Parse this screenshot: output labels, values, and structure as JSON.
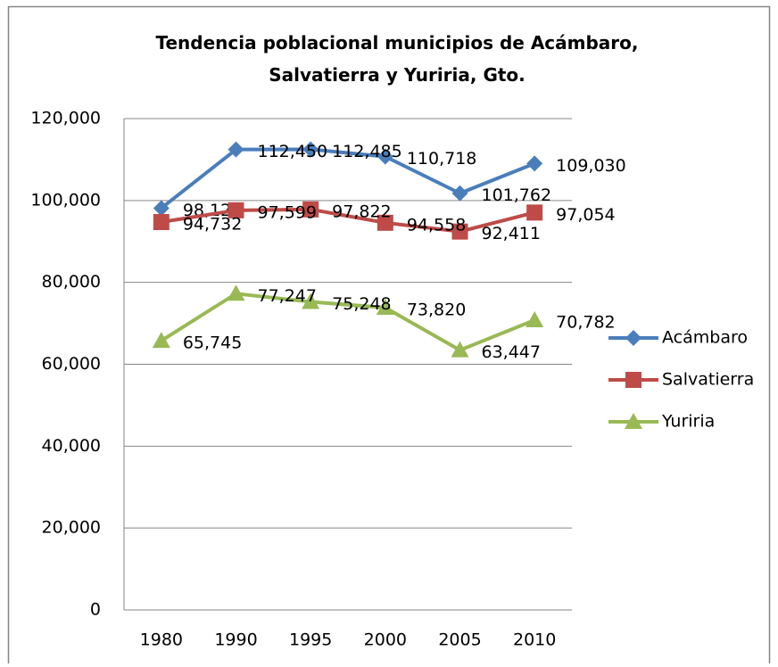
{
  "chart_data": {
    "type": "line",
    "title": "Tendencia poblacional municipios de Acámbaro, Salvatierra y Yuriria, Gto.",
    "categories": [
      "1980",
      "1990",
      "1995",
      "2000",
      "2005",
      "2010"
    ],
    "series": [
      {
        "name": "Acámbaro",
        "color": "#4a7ebb",
        "marker": "diamond",
        "values": [
          98126,
          112450,
          112485,
          110718,
          101762,
          109030
        ],
        "value_labels": [
          "98,126",
          "112,450",
          "112,485",
          "110,718",
          "101,762",
          "109,030"
        ]
      },
      {
        "name": "Salvatierra",
        "color": "#be4b48",
        "marker": "square",
        "values": [
          94732,
          97599,
          97822,
          94558,
          92411,
          97054
        ],
        "value_labels": [
          "94,732",
          "97,599",
          "97,822",
          "94,558",
          "92,411",
          "97,054"
        ]
      },
      {
        "name": "Yuriria",
        "color": "#98b954",
        "marker": "triangle",
        "values": [
          65745,
          77247,
          75248,
          73820,
          63447,
          70782
        ],
        "value_labels": [
          "65,745",
          "77,247",
          "75,248",
          "73,820",
          "63,447",
          "70,782"
        ]
      }
    ],
    "ylim": [
      0,
      120000
    ],
    "yticks": [
      0,
      {
        "value": 20000,
        "label": "20,000"
      },
      {
        "value": 40000,
        "label": "40,000"
      },
      {
        "value": 60000,
        "label": "60,000"
      },
      {
        "value": 80000,
        "label": "80,000"
      },
      {
        "value": 100000,
        "label": "100,000"
      },
      {
        "value": 120000,
        "label": "120,000"
      }
    ],
    "grid": true,
    "legend": "right"
  }
}
